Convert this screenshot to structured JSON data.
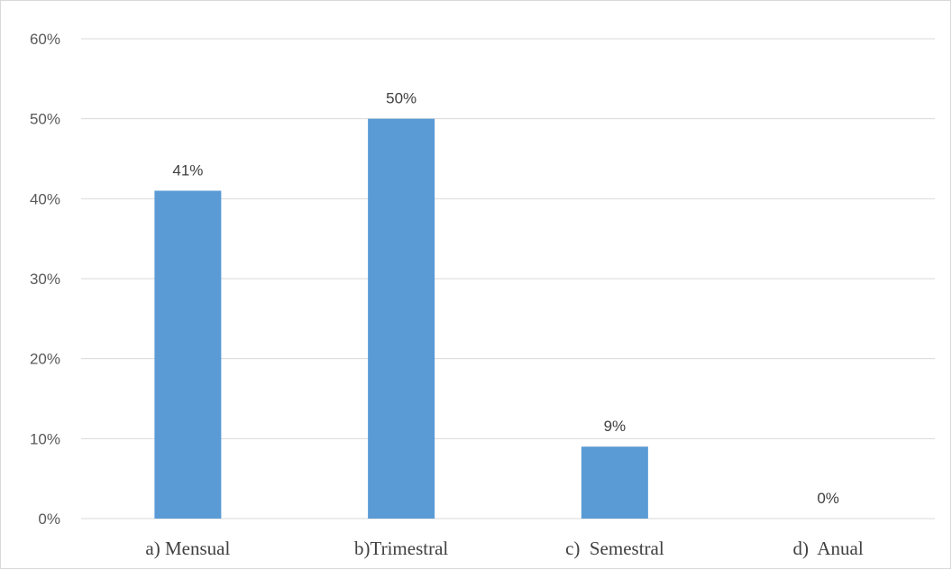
{
  "chart_data": {
    "type": "bar",
    "categories": [
      "a) Mensual",
      "b)Trimestral",
      "c)  Semestral",
      "d)  Anual"
    ],
    "values": [
      41,
      50,
      9,
      0
    ],
    "data_labels": [
      "41%",
      "50%",
      "9%",
      "0%"
    ],
    "ylim": [
      0,
      60
    ],
    "yticks": [
      0,
      10,
      20,
      30,
      40,
      50,
      60
    ],
    "ytick_labels": [
      "0%",
      "10%",
      "20%",
      "30%",
      "40%",
      "50%",
      "60%"
    ],
    "grid": true,
    "legend": "none",
    "bar_color": "#5b9bd5",
    "title": "",
    "xlabel": "",
    "ylabel": ""
  }
}
